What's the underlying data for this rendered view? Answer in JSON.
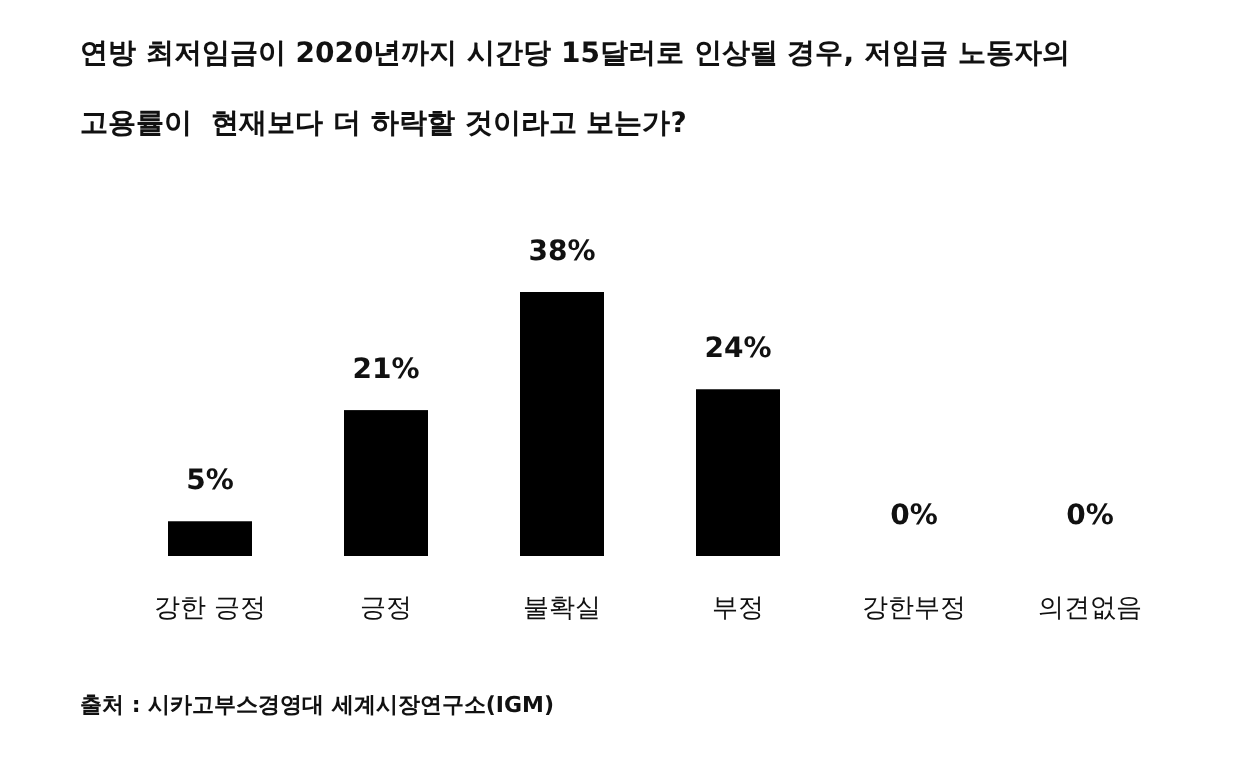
{
  "chart_data": {
    "type": "bar",
    "title": "연방 최저임금이 2020년까지 시간당 15달러로 인상될 경우, 저임금 노동자의 고용률이  현재보다 더 하락할 것이라고 보는가?",
    "categories": [
      "강한 긍정",
      "긍정",
      "불확실",
      "부정",
      "강한부정",
      "의견없음"
    ],
    "values": [
      5,
      21,
      38,
      24,
      0,
      0
    ],
    "color": "#000000",
    "value_labels": [
      "5%",
      "21%",
      "38%",
      "24%",
      "0%",
      "0%"
    ],
    "tick_labels": "x",
    "annotations": [
      "출처 : 시카고부스경영대 세계시장연구소(IGM)"
    ]
  }
}
